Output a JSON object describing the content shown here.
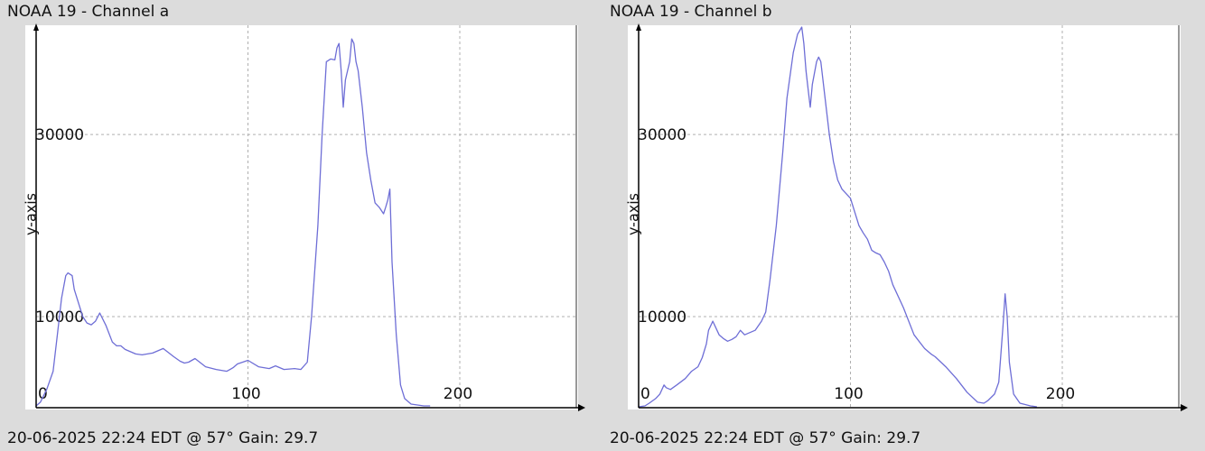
{
  "panels": [
    {
      "title": "NOAA 19 - Channel a",
      "footer": "20-06-2025 22:24 EDT @ 57° Gain: 29.7"
    },
    {
      "title": "NOAA 19 - Channel b",
      "footer": "20-06-2025 22:24 EDT @ 57° Gain: 29.7"
    }
  ],
  "colors": {
    "line": "#6e6ed6",
    "grid": "#b0b0b0",
    "axis": "#000000",
    "plot_bg": "#ffffff",
    "page_bg": "#dcdcdc"
  },
  "chart_data": [
    {
      "type": "line",
      "title": "NOAA 19 - Channel a",
      "xlabel": "",
      "ylabel": "y-axis",
      "xlim": [
        0,
        255
      ],
      "ylim": [
        0,
        42000
      ],
      "xticks": [
        0,
        100,
        200
      ],
      "xtick_labels": [
        "0",
        "100",
        "200"
      ],
      "yticks": [
        10000,
        30000
      ],
      "ytick_labels": [
        "10000",
        "30000"
      ],
      "grid": true,
      "series": [
        {
          "x": [
            0,
            2,
            5,
            8,
            10,
            12,
            14,
            15,
            17,
            18,
            20,
            22,
            24,
            26,
            28,
            30,
            33,
            36,
            38,
            40,
            42,
            44,
            47,
            50,
            55,
            60,
            65,
            68,
            70,
            72,
            75,
            80,
            85,
            90,
            93,
            95,
            100,
            105,
            110,
            113,
            117,
            122,
            125,
            128,
            130,
            133,
            135,
            137,
            139,
            141,
            142,
            143,
            144,
            145,
            146,
            148,
            149,
            150,
            151,
            152,
            154,
            156,
            158,
            160,
            162,
            164,
            165,
            166,
            167,
            168,
            170,
            172,
            174,
            177,
            180,
            183,
            186
          ],
          "y": [
            200,
            600,
            2000,
            4000,
            8000,
            12000,
            14500,
            14800,
            14500,
            13000,
            11500,
            10000,
            9300,
            9100,
            9500,
            10400,
            9000,
            7200,
            6800,
            6800,
            6400,
            6200,
            5900,
            5800,
            6000,
            6500,
            5600,
            5100,
            4900,
            5000,
            5400,
            4500,
            4200,
            4000,
            4400,
            4800,
            5200,
            4500,
            4300,
            4600,
            4200,
            4300,
            4200,
            5000,
            10000,
            20000,
            30000,
            38000,
            38300,
            38200,
            39500,
            40000,
            37000,
            33000,
            36000,
            38000,
            40500,
            40000,
            38000,
            37000,
            33000,
            28000,
            25000,
            22500,
            22000,
            21300,
            22000,
            22800,
            24000,
            16000,
            8000,
            2500,
            1000,
            400,
            300,
            200,
            200
          ]
        }
      ]
    },
    {
      "type": "line",
      "title": "NOAA 19 - Channel b",
      "xlabel": "",
      "ylabel": "y-axis",
      "xlim": [
        0,
        255
      ],
      "ylim": [
        0,
        42000
      ],
      "xticks": [
        0,
        100,
        200
      ],
      "xtick_labels": [
        "0",
        "100",
        "200"
      ],
      "yticks": [
        10000,
        30000
      ],
      "ytick_labels": [
        "10000",
        "30000"
      ],
      "grid": true,
      "series": [
        {
          "x": [
            0,
            3,
            5,
            8,
            10,
            12,
            13,
            15,
            18,
            22,
            25,
            28,
            30,
            32,
            33,
            35,
            38,
            40,
            42,
            44,
            46,
            48,
            50,
            55,
            58,
            60,
            62,
            65,
            68,
            70,
            73,
            75,
            77,
            78,
            79,
            80,
            81,
            82,
            84,
            85,
            86,
            88,
            90,
            92,
            94,
            96,
            100,
            104,
            106,
            108,
            110,
            112,
            114,
            116,
            118,
            120,
            125,
            130,
            135,
            138,
            140,
            145,
            150,
            155,
            160,
            163,
            165,
            168,
            170,
            172,
            173,
            174,
            175,
            177,
            180,
            185,
            188
          ],
          "y": [
            100,
            200,
            500,
            1000,
            1500,
            2500,
            2200,
            2000,
            2500,
            3200,
            4000,
            4500,
            5500,
            7000,
            8500,
            9500,
            8000,
            7600,
            7300,
            7500,
            7800,
            8500,
            8000,
            8500,
            9500,
            10500,
            14000,
            20000,
            28000,
            34000,
            39000,
            41000,
            41800,
            40000,
            37000,
            35000,
            33000,
            35500,
            38000,
            38500,
            38000,
            34000,
            30000,
            27000,
            25000,
            24000,
            23000,
            20000,
            19200,
            18500,
            17300,
            17000,
            16800,
            16000,
            15000,
            13500,
            11000,
            8000,
            6500,
            5900,
            5600,
            4500,
            3200,
            1700,
            600,
            500,
            800,
            1500,
            2800,
            9000,
            12500,
            10000,
            5000,
            1500,
            500,
            200,
            100
          ]
        }
      ]
    }
  ]
}
